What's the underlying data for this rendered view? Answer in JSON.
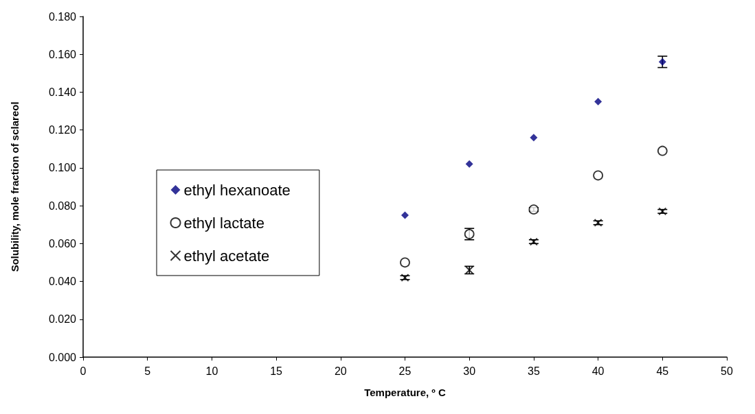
{
  "chart_data": {
    "type": "scatter",
    "xlabel": "Temperature, º C",
    "ylabel": "Solubility, mole fraction of sclareol",
    "x": [
      25,
      30,
      35,
      40,
      45
    ],
    "series": [
      {
        "name": "ethyl hexanoate",
        "color": "#000080",
        "marker": "diamond",
        "values": [
          0.075,
          0.102,
          0.116,
          0.135,
          0.156
        ],
        "errors": [
          null,
          null,
          null,
          null,
          0.003
        ]
      },
      {
        "name": "ethyl lactate",
        "color": "#000000",
        "marker": "circle",
        "values": [
          0.05,
          0.065,
          0.078,
          0.096,
          0.109
        ],
        "errors": [
          null,
          0.003,
          0.001,
          null,
          null
        ]
      },
      {
        "name": "ethyl acetate",
        "color": "#000000",
        "marker": "cross",
        "values": [
          0.042,
          0.046,
          0.061,
          0.071,
          0.077
        ],
        "errors": [
          0.001,
          0.002,
          0.001,
          0.001,
          0.001
        ]
      }
    ],
    "xlim": [
      0,
      50
    ],
    "xticks": [
      0,
      5,
      10,
      15,
      20,
      25,
      30,
      35,
      40,
      45,
      50
    ],
    "ylim": [
      0,
      0.18
    ],
    "yticks": [
      {
        "value": 0,
        "label": "0.000"
      },
      {
        "value": 0.02,
        "label": "0.020"
      },
      {
        "value": 0.04,
        "label": "0.040"
      },
      {
        "value": 0.06,
        "label": "0.060"
      },
      {
        "value": 0.08,
        "label": "0.080"
      },
      {
        "value": 0.1,
        "label": "0.100"
      },
      {
        "value": 0.12,
        "label": "0.120"
      },
      {
        "value": 0.14,
        "label": "0.140"
      },
      {
        "value": 0.16,
        "label": "0.160"
      },
      {
        "value": 0.18,
        "label": "0.180"
      }
    ],
    "grid": false,
    "legend": "left"
  }
}
